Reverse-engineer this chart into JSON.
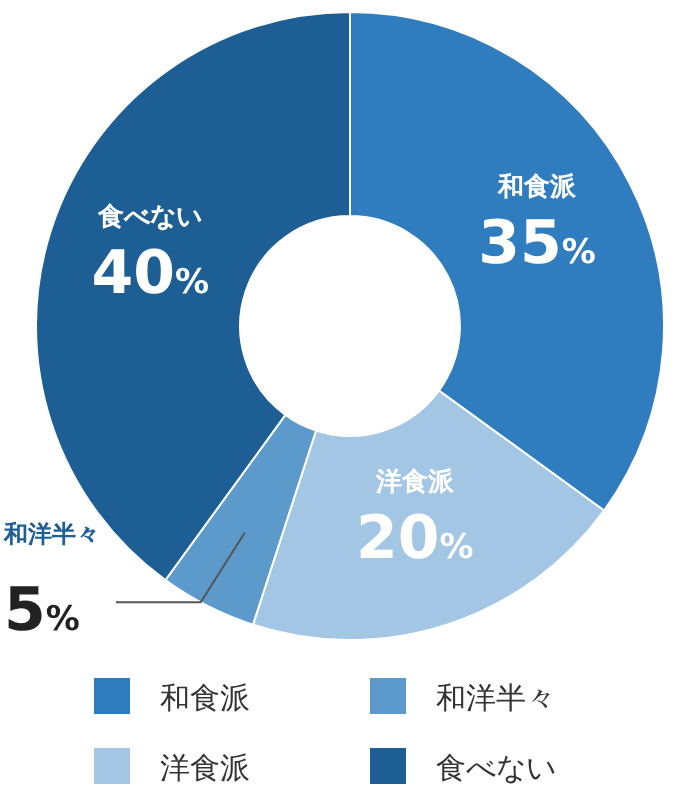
{
  "chart_data": {
    "type": "donut",
    "categories": [
      "和食派",
      "洋食派",
      "和洋半々",
      "食べない"
    ],
    "values": [
      35,
      20,
      5,
      40
    ],
    "colors": [
      "#2f7dbf",
      "#a2c6e3",
      "#5b9acb",
      "#1d5e95"
    ],
    "value_labels": [
      "35%",
      "20%",
      "5%",
      "40%"
    ],
    "legend": "bottom"
  }
}
